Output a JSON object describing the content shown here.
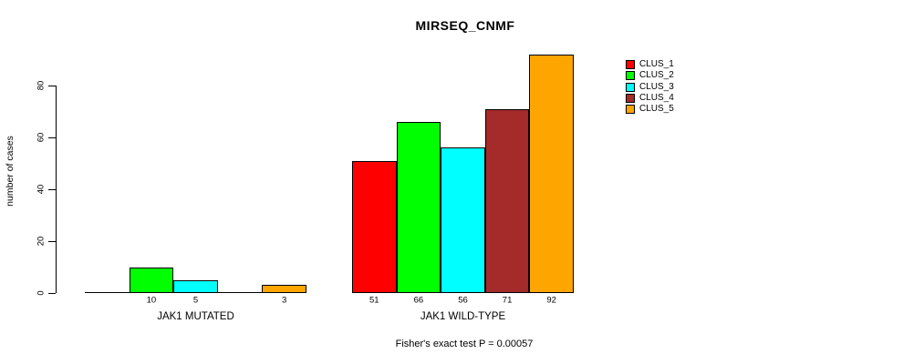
{
  "chart_data": {
    "type": "bar",
    "title": "MIRSEQ_CNMF",
    "ylabel": "number of cases",
    "xlabel": "",
    "ylim": [
      0,
      92
    ],
    "yticks": [
      0,
      20,
      40,
      60,
      80
    ],
    "grid": false,
    "legend_position": "right",
    "categories": [
      "JAK1 MUTATED",
      "JAK1 WILD-TYPE"
    ],
    "series": [
      {
        "name": "CLUS_1",
        "color": "#FF0000",
        "values": [
          0,
          51
        ]
      },
      {
        "name": "CLUS_2",
        "color": "#00FF00",
        "values": [
          10,
          66
        ]
      },
      {
        "name": "CLUS_3",
        "color": "#00FFFF",
        "values": [
          5,
          56
        ]
      },
      {
        "name": "CLUS_4",
        "color": "#A52A2A",
        "values": [
          0,
          71
        ]
      },
      {
        "name": "CLUS_5",
        "color": "#FFA500",
        "values": [
          3,
          92
        ]
      }
    ],
    "bar_value_labels": {
      "JAK1 MUTATED": [
        "10",
        "5",
        "3"
      ],
      "JAK1 WILD-TYPE": [
        "51",
        "66",
        "56",
        "71",
        "92"
      ],
      "note": "labels shown only for bars with value > 0"
    },
    "annotation": "Fisher's exact test P = 0.00057"
  },
  "legend": {
    "items": [
      {
        "label": "CLUS_1",
        "color": "#FF0000"
      },
      {
        "label": "CLUS_2",
        "color": "#00FF00"
      },
      {
        "label": "CLUS_3",
        "color": "#00FFFF"
      },
      {
        "label": "CLUS_4",
        "color": "#A52A2A"
      },
      {
        "label": "CLUS_5",
        "color": "#FFA500"
      }
    ]
  }
}
